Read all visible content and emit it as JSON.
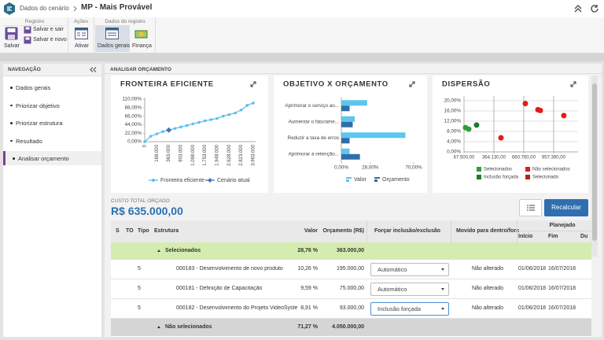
{
  "header": {
    "breadcrumb": "Dados do cenário",
    "title": "MP - Mais Provável"
  },
  "ribbon": {
    "groups": [
      {
        "label": "Registro",
        "buttons": [
          "Salvar",
          "Salvar e sair",
          "Salvar e novo"
        ]
      },
      {
        "label": "Ações",
        "buttons": [
          "Ativar"
        ]
      },
      {
        "label": "Dados do registro",
        "buttons": [
          "Dados gerais",
          "Finança"
        ]
      }
    ]
  },
  "navigation": {
    "title": "NAVEGAÇÃO",
    "items": [
      {
        "label": "Dados gerais",
        "done": false,
        "active": false
      },
      {
        "label": "Priorizar objetivo",
        "done": true,
        "active": false
      },
      {
        "label": "Priorizar estrutura",
        "done": true,
        "active": false
      },
      {
        "label": "Resultado",
        "done": true,
        "active": false
      },
      {
        "label": "Analisar orçamento",
        "done": false,
        "active": true
      }
    ]
  },
  "panel": {
    "title": "ANALISAR ORÇAMENTO",
    "cost_label": "CUSTO TOTAL ORÇADO",
    "cost_value": "R$ 635.000,00",
    "button": "Recalcular"
  },
  "chart_data": [
    {
      "type": "line",
      "title": "FRONTEIRA EFICIENTE",
      "categories": [
        "0",
        null,
        "168.000",
        null,
        "363.000",
        null,
        "903.000",
        null,
        "1.098.000",
        null,
        "1.753.000",
        null,
        "1.948.000",
        null,
        "2.628.000",
        null,
        "2.823.000",
        null,
        "3.963.000"
      ],
      "series": [
        {
          "name": "Fronteira eficiente",
          "color": "#5bc0eb",
          "marker": "circle",
          "values": [
            0,
            14,
            20,
            26,
            30,
            34,
            38,
            42,
            46,
            50,
            54,
            57,
            60,
            66,
            70,
            74,
            82,
            94,
            100
          ]
        },
        {
          "name": "Cenário atual",
          "color": "#3b78b0",
          "marker": "diamond",
          "values": [
            null,
            null,
            null,
            null,
            30,
            null,
            null,
            null,
            null,
            null,
            null,
            null,
            null,
            null,
            null,
            null,
            null,
            null,
            null
          ]
        }
      ],
      "ylim": [
        0,
        110
      ],
      "yticks": [
        {
          "value": 0,
          "label": "0,00%"
        },
        {
          "value": 22,
          "label": "22,00%"
        },
        {
          "value": 44,
          "label": "44,00%"
        },
        {
          "value": 66,
          "label": "66,00%"
        },
        {
          "value": 88,
          "label": "88,00%"
        },
        {
          "value": 110,
          "label": "110,00%"
        }
      ],
      "grid": false
    },
    {
      "type": "bar",
      "orientation": "horizontal",
      "title": "OBJETIVO X ORÇAMENTO",
      "categories": [
        "Aprimorar o serviço ao...",
        "Aumentar o faturame...",
        "Reduzir a taxa de erros",
        "Aprimorar a retenção..."
      ],
      "series": [
        {
          "name": "Valor",
          "color": "#5cc6ef",
          "values": [
            25,
            13,
            62,
            8
          ]
        },
        {
          "name": "Orçamento",
          "color": "#2f6ea8",
          "values": [
            8,
            11,
            8,
            18
          ]
        }
      ],
      "xlim": [
        0,
        70
      ],
      "xticks": [
        {
          "value": 0,
          "label": "0,00%"
        },
        {
          "value": 28,
          "label": "28,00%"
        },
        {
          "value": 70,
          "label": "70,00%"
        }
      ],
      "grid": false
    },
    {
      "type": "scatter",
      "title": "DISPERSÃO",
      "series": [
        {
          "name": "Selecionados",
          "color": "#2e9e3a",
          "x": [
            83000,
            114000
          ],
          "y": [
            9.5,
            8.9
          ]
        },
        {
          "name": "Não selecionados",
          "color": "#e41b1b",
          "x": [
            676700,
            801700,
            825000,
            1059000,
            434600
          ],
          "y": [
            18.9,
            16.5,
            16.2,
            14.2,
            5.5
          ]
        },
        {
          "name": "Inclusão forçada",
          "color": "#1f7a30",
          "x": [
            192000
          ],
          "y": [
            10.5
          ]
        },
        {
          "name": "Selecionado",
          "color": "#b22222",
          "x": [],
          "y": []
        }
      ],
      "xlim": [
        67500,
        1200000
      ],
      "xticks": [
        {
          "value": 67500,
          "label": "67.500,00"
        },
        {
          "value": 364130,
          "label": "364.130,00"
        },
        {
          "value": 660760,
          "label": "660.760,00"
        },
        {
          "value": 957390,
          "label": "957.390,00"
        }
      ],
      "ylim": [
        0,
        20
      ],
      "yticks": [
        {
          "value": 0,
          "label": "0,00%"
        },
        {
          "value": 4,
          "label": "4,00%"
        },
        {
          "value": 8,
          "label": "8,00%"
        },
        {
          "value": 12,
          "label": "12,00%"
        },
        {
          "value": 16,
          "label": "16,00%"
        },
        {
          "value": 20,
          "label": "20,00%"
        }
      ],
      "grid": true
    }
  ],
  "table": {
    "columns": [
      "S",
      "TO",
      "Tipo",
      "Estrutura",
      "Valor",
      "Orçamento (R$)",
      "Forçar inclusão/exclusão",
      "Movido para dentro/fora"
    ],
    "planned": {
      "label": "Planejado",
      "columns": [
        "Início",
        "Fim",
        "Du"
      ]
    },
    "rows": [
      {
        "group": "Selecionados",
        "color": "#d5ecb0",
        "valor": "28,76 %",
        "orcamento": "363.000,00"
      },
      {
        "tipo": 5,
        "estrutura": "000183 - Desenvolvimento de novo produto",
        "valor": "10,26 %",
        "orcamento": "195.000,00",
        "forcar": "Automático",
        "focused": false,
        "movido": "Não alterado",
        "inicio": "01/06/2018",
        "fim": "16/07/2018"
      },
      {
        "tipo": 5,
        "estrutura": "000181 - Definição de Capacitação",
        "valor": "9,59 %",
        "orcamento": "75.000,00",
        "forcar": "Automático",
        "focused": false,
        "movido": "Não alterado",
        "inicio": "01/06/2018",
        "fim": "16/07/2018"
      },
      {
        "tipo": 5,
        "estrutura": "000182 - Desenvolvimento do Projeto VideoSyste",
        "valor": "8,91 %",
        "orcamento": "93.000,00",
        "forcar": "Inclusão forçada",
        "focused": true,
        "movido": "Não alterado",
        "inicio": "01/06/2018",
        "fim": "16/07/2018"
      },
      {
        "group": "Não selecionados",
        "color": "#d5d5d5",
        "valor": "71,27 %",
        "orcamento": "4.050.000,00"
      }
    ]
  }
}
